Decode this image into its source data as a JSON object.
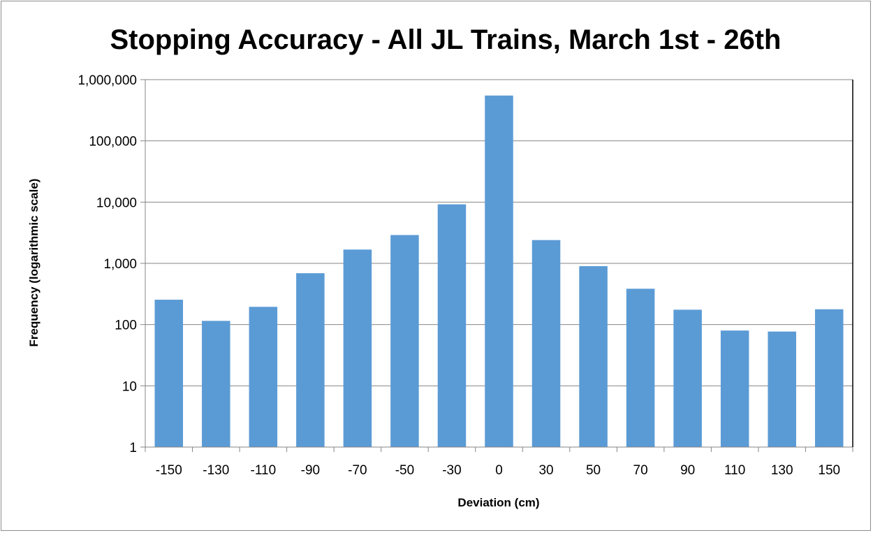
{
  "chart_data": {
    "type": "bar",
    "title": "Stopping Accuracy - All JL Trains, March 1st - 26th",
    "xlabel": "Deviation (cm)",
    "ylabel": "Frequency (logarithmic scale)",
    "y_scale": "log",
    "ylim": [
      1,
      1000000
    ],
    "y_ticks": [
      1,
      10,
      100,
      1000,
      10000,
      100000,
      1000000
    ],
    "y_tick_labels": [
      "1",
      "10",
      "100",
      "1,000",
      "10,000",
      "100,000",
      "1,000,000"
    ],
    "grid": "horizontal major gridlines",
    "legend": "none",
    "bar_color": "#5b9bd5",
    "categories": [
      "-150",
      "-130",
      "-110",
      "-90",
      "-70",
      "-50",
      "-30",
      "0",
      "30",
      "50",
      "70",
      "90",
      "110",
      "130",
      "150"
    ],
    "values": [
      255,
      115,
      195,
      690,
      1680,
      2900,
      9200,
      550000,
      2400,
      900,
      385,
      175,
      80,
      77,
      178
    ]
  }
}
